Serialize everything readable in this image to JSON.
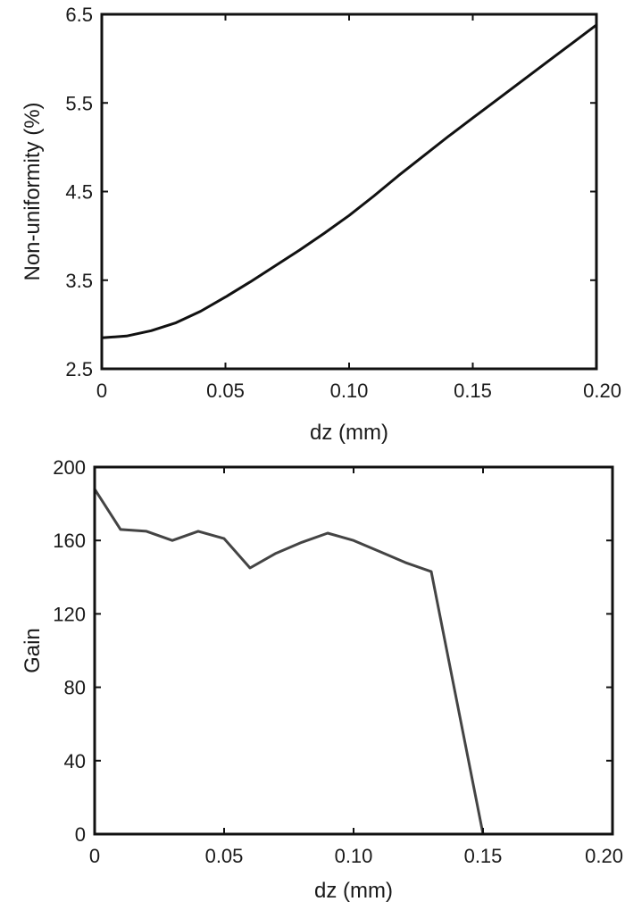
{
  "chart_data": [
    {
      "type": "line",
      "xlabel": "dz (mm)",
      "ylabel": "Non-uniformity (%)",
      "xlim": [
        0,
        0.2
      ],
      "ylim": [
        2.5,
        6.5
      ],
      "xticks": [
        0,
        0.05,
        0.1,
        0.15,
        0.2
      ],
      "xtick_labels": [
        "0",
        "0.05",
        "0.10",
        "0.15",
        "0.20"
      ],
      "yticks": [
        2.5,
        3.5,
        4.5,
        5.5,
        6.5
      ],
      "ytick_labels": [
        "2.5",
        "3.5",
        "4.5",
        "5.5",
        "6.5"
      ],
      "grid": false,
      "series": [
        {
          "color": "#111111",
          "x": [
            0,
            0.01,
            0.02,
            0.03,
            0.04,
            0.05,
            0.06,
            0.07,
            0.08,
            0.09,
            0.1,
            0.11,
            0.12,
            0.13,
            0.14,
            0.15,
            0.16,
            0.17,
            0.18,
            0.19,
            0.2
          ],
          "y": [
            2.85,
            2.87,
            2.93,
            3.02,
            3.15,
            3.31,
            3.48,
            3.66,
            3.84,
            4.03,
            4.23,
            4.45,
            4.68,
            4.9,
            5.12,
            5.33,
            5.54,
            5.75,
            5.96,
            6.17,
            6.38
          ]
        }
      ]
    },
    {
      "type": "line",
      "xlabel": "dz (mm)",
      "ylabel": "Gain",
      "xlim": [
        0,
        0.2
      ],
      "ylim": [
        0,
        200
      ],
      "xticks": [
        0,
        0.05,
        0.1,
        0.15,
        0.2
      ],
      "xtick_labels": [
        "0",
        "0.05",
        "0.10",
        "0.15",
        "0.20"
      ],
      "yticks": [
        0,
        40,
        80,
        120,
        160,
        200
      ],
      "ytick_labels": [
        "0",
        "40",
        "80",
        "120",
        "160",
        "200"
      ],
      "grid": false,
      "series": [
        {
          "color": "#444444",
          "x": [
            0,
            0.01,
            0.02,
            0.03,
            0.04,
            0.05,
            0.06,
            0.07,
            0.08,
            0.09,
            0.1,
            0.11,
            0.12,
            0.13,
            0.15
          ],
          "y": [
            188,
            166,
            165,
            160,
            165,
            161,
            145,
            153,
            159,
            164,
            160,
            154,
            148,
            143,
            0
          ]
        }
      ]
    }
  ]
}
